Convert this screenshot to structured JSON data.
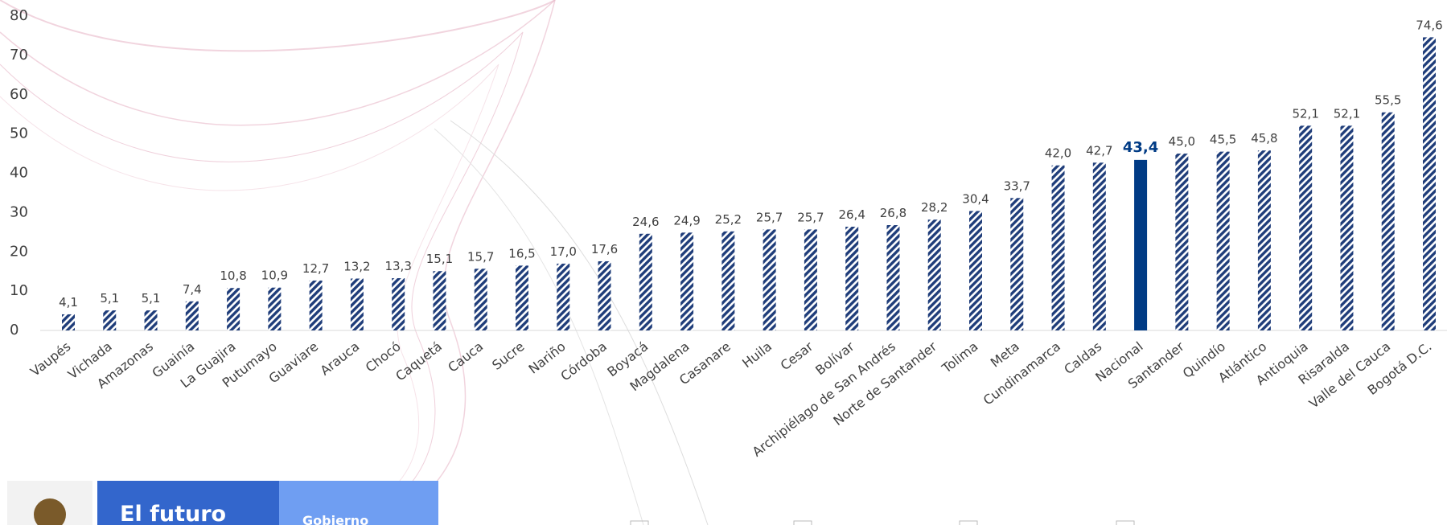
{
  "chart_data": {
    "type": "bar",
    "categories": [
      "Vaupés",
      "Vichada",
      "Amazonas",
      "Guainía",
      "La Guajira",
      "Putumayo",
      "Guaviare",
      "Arauca",
      "Chocó",
      "Caquetá",
      "Cauca",
      "Sucre",
      "Nariño",
      "Córdoba",
      "Boyacá",
      "Magdalena",
      "Casanare",
      "Huila",
      "Cesar",
      "Bolívar",
      "Archipiélago de San Andrés",
      "Norte de Santander",
      "Tolima",
      "Meta",
      "Cundinamarca",
      "Caldas",
      "Nacional",
      "Santander",
      "Quindío",
      "Atlántico",
      "Antioquia",
      "Risaralda",
      "Valle del Cauca",
      "Bogotá D.C."
    ],
    "values": [
      4.1,
      5.1,
      5.1,
      7.4,
      10.8,
      10.9,
      12.7,
      13.2,
      13.3,
      15.1,
      15.7,
      16.5,
      17.0,
      17.6,
      24.6,
      24.9,
      25.2,
      25.7,
      25.7,
      26.4,
      26.8,
      28.2,
      30.4,
      33.7,
      42.0,
      42.7,
      43.4,
      45.0,
      45.5,
      45.8,
      52.1,
      52.1,
      55.5,
      74.6
    ],
    "value_labels": [
      "4,1",
      "5,1",
      "5,1",
      "7,4",
      "10,8",
      "10,9",
      "12,7",
      "13,2",
      "13,3",
      "15,1",
      "15,7",
      "16,5",
      "17,0",
      "17,6",
      "24,6",
      "24,9",
      "25,2",
      "25,7",
      "25,7",
      "26,4",
      "26,8",
      "28,2",
      "30,4",
      "33,7",
      "42,0",
      "42,7",
      "43,4",
      "45,0",
      "45,5",
      "45,8",
      "52,1",
      "52,1",
      "55,5",
      "74,6"
    ],
    "color": "#1f3d7a",
    "highlight": "Nacional",
    "highlight_color": "#003b85",
    "ylim": [
      0,
      80
    ],
    "yticks": [
      0,
      10,
      20,
      30,
      40,
      50,
      60,
      70,
      80
    ],
    "grid": false
  },
  "footer": {
    "brand": "El futuro",
    "tag": "Gobierno"
  }
}
